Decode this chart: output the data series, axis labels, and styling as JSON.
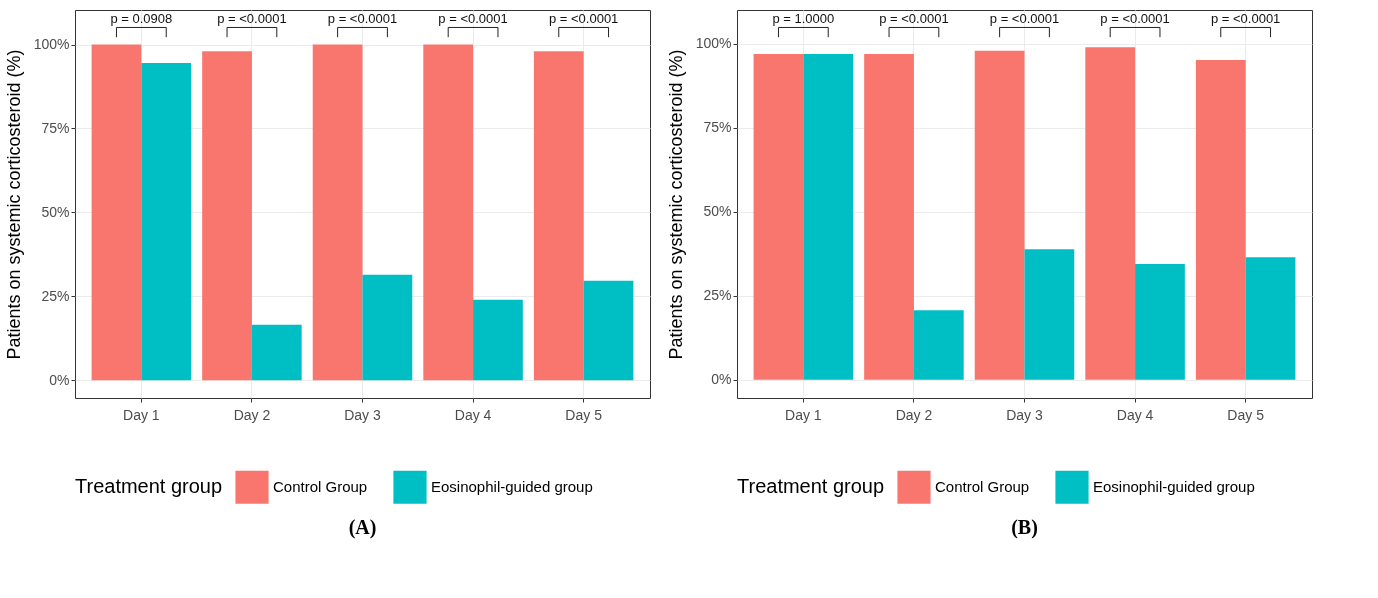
{
  "chart_data": [
    {
      "type": "bar",
      "title": "(A)",
      "ylabel": "Patients on systemic corticosteroid (%)",
      "legend_title": "Treatment group",
      "legend": "bottom",
      "grid": true,
      "categories": [
        "Day 1",
        "Day 2",
        "Day 3",
        "Day 4",
        "Day 5"
      ],
      "series": [
        {
          "name": "Control Group",
          "color": "#f8766d",
          "values": [
            100,
            98,
            100,
            100,
            98
          ]
        },
        {
          "name": "Eosinophil-guided group",
          "color": "#00bfc4",
          "values": [
            94.5,
            16.5,
            31.4,
            24.0,
            29.6
          ]
        }
      ],
      "ylim": [
        -5.3,
        110.3
      ],
      "yticks": [
        {
          "value": 0,
          "label": "0%"
        },
        {
          "value": 25,
          "label": "25%"
        },
        {
          "value": 50,
          "label": "50%"
        },
        {
          "value": 75,
          "label": "75%"
        },
        {
          "value": 100,
          "label": "100%"
        }
      ],
      "annotations": [
        "p = 0.0908",
        "p = <0.0001",
        "p = <0.0001",
        "p = <0.0001",
        "p = <0.0001"
      ]
    },
    {
      "type": "bar",
      "title": "(B)",
      "ylabel": "Patients on systemic corticosteroid (%)",
      "legend_title": "Treatment group",
      "legend": "bottom",
      "grid": true,
      "categories": [
        "Day 1",
        "Day 2",
        "Day 3",
        "Day 4",
        "Day 5"
      ],
      "series": [
        {
          "name": "Control Group",
          "color": "#f8766d",
          "values": [
            97,
            97,
            98,
            99,
            95.2
          ]
        },
        {
          "name": "Eosinophil-guided group",
          "color": "#00bfc4",
          "values": [
            97,
            20.7,
            38.9,
            34.5,
            36.5
          ]
        }
      ],
      "ylim": [
        -5.4,
        110.1
      ],
      "yticks": [
        {
          "value": 0,
          "label": "0%"
        },
        {
          "value": 25,
          "label": "25%"
        },
        {
          "value": 50,
          "label": "50%"
        },
        {
          "value": 75,
          "label": "75%"
        },
        {
          "value": 100,
          "label": "100%"
        }
      ],
      "annotations": [
        "p = 1.0000",
        "p = <0.0001",
        "p = <0.0001",
        "p = <0.0001",
        "p = <0.0001"
      ]
    }
  ]
}
